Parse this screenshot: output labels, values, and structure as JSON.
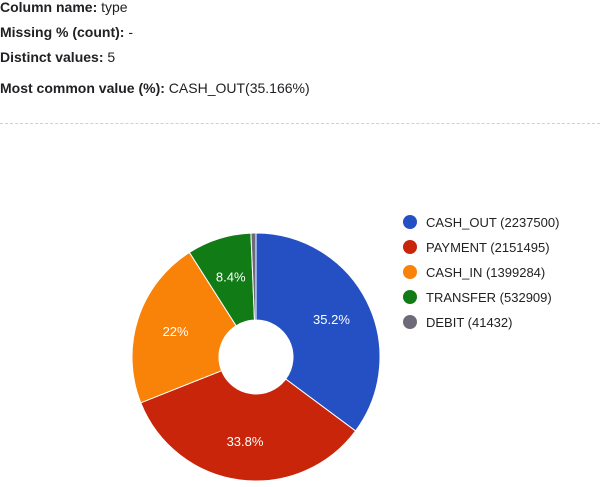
{
  "info": {
    "column_name_label": "Column name:",
    "column_name_value": "type",
    "missing_label": "Missing % (count):",
    "missing_value": "-",
    "distinct_label": "Distinct values:",
    "distinct_value": "5",
    "most_common_label": "Most common value (%):",
    "most_common_value": "CASH_OUT(35.166%)"
  },
  "chart_data": {
    "type": "pie",
    "style": "donut",
    "categories": [
      "CASH_OUT",
      "PAYMENT",
      "CASH_IN",
      "TRANSFER",
      "DEBIT"
    ],
    "counts": [
      2237500,
      2151495,
      1399284,
      532909,
      41432
    ],
    "slice_labels": [
      "35.2%",
      "33.8%",
      "22%",
      "8.4%",
      ""
    ],
    "legend": [
      "CASH_OUT (2237500)",
      "PAYMENT (2151495)",
      "CASH_IN (1399284)",
      "TRANSFER (532909)",
      "DEBIT (41432)"
    ],
    "colors": [
      "#2450c4",
      "#c8250a",
      "#f98208",
      "#117b16",
      "#6f6a77"
    ],
    "legend_position": "right"
  }
}
